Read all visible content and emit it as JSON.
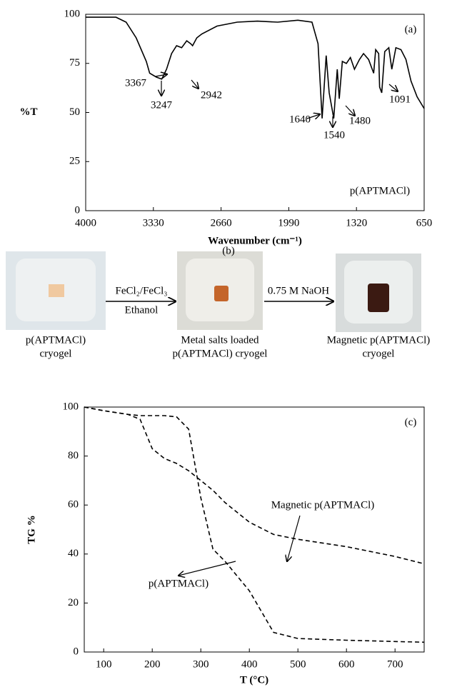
{
  "chart_data": [
    {
      "type": "line",
      "label": "(a)",
      "xlabel": "Wavenumber (cm⁻¹)",
      "ylabel": "%T",
      "xlim": [
        4000,
        650
      ],
      "xticks": [
        4000,
        3330,
        2660,
        1990,
        1320,
        650
      ],
      "ylim": [
        0,
        100
      ],
      "yticks": [
        0,
        25,
        50,
        75,
        100
      ],
      "annotations": [
        "3367",
        "3247",
        "2942",
        "1640",
        "1540",
        "1480",
        "1091"
      ],
      "x": [
        4000,
        3700,
        3600,
        3500,
        3400,
        3367,
        3300,
        3247,
        3200,
        3150,
        3100,
        3050,
        3000,
        2960,
        2942,
        2900,
        2850,
        2700,
        2500,
        2300,
        2100,
        1900,
        1760,
        1700,
        1660,
        1620,
        1590,
        1545,
        1510,
        1490,
        1460,
        1420,
        1380,
        1340,
        1290,
        1250,
        1200,
        1150,
        1130,
        1100,
        1091,
        1070,
        1040,
        1000,
        970,
        930,
        880,
        830,
        780,
        720,
        650
      ],
      "series": [
        {
          "name": "p(APTMACl)",
          "color": "#000000",
          "line_style": "solid",
          "values": [
            98.5,
            98.5,
            96,
            88,
            76,
            70,
            68,
            67,
            72,
            80,
            84,
            83,
            86.5,
            85,
            84,
            88,
            90,
            94,
            96,
            96.5,
            96,
            97,
            96,
            85,
            47,
            79,
            60,
            47,
            72,
            57,
            76,
            75,
            78,
            72,
            77,
            80,
            77,
            70,
            82,
            80,
            63,
            60,
            81,
            83,
            72,
            83,
            82,
            77,
            66,
            58,
            52
          ]
        }
      ]
    },
    {
      "type": "line",
      "label": "(c)",
      "xlabel": "T (°C)",
      "ylabel": "TG %",
      "xlim": [
        60,
        760
      ],
      "xticks": [
        100,
        200,
        300,
        400,
        500,
        600,
        700
      ],
      "ylim": [
        0,
        100
      ],
      "yticks": [
        0,
        20,
        40,
        60,
        80,
        100
      ],
      "x": [
        60,
        100,
        150,
        175,
        200,
        225,
        250,
        275,
        300,
        325,
        350,
        400,
        450,
        500,
        600,
        700,
        760
      ],
      "series": [
        {
          "name": "Magnetic p(APTMACl)",
          "color": "#000000",
          "line_style": "dashed",
          "values": [
            100,
            98.5,
            97,
            95,
            83,
            79,
            77,
            74,
            70,
            66,
            61,
            53,
            48,
            46,
            43,
            39,
            36
          ]
        },
        {
          "name": "p(APTMACl)",
          "color": "#000000",
          "line_style": "dashed",
          "values": [
            100,
            98.5,
            97,
            96.5,
            96.5,
            96.5,
            96,
            91,
            63,
            42,
            37,
            25,
            8,
            5.5,
            4.8,
            4.3,
            4
          ]
        }
      ]
    }
  ],
  "diagram": {
    "label": "(b)",
    "steps": [
      {
        "caption": [
          "p(APTMACl)",
          "cryogel"
        ]
      },
      {
        "caption": [
          "Metal salts loaded",
          "p(APTMACl) cryogel"
        ]
      },
      {
        "caption": [
          "Magnetic p(APTMACl)",
          "cryogel"
        ]
      }
    ],
    "arrows": [
      {
        "labels": [
          "FeCl₂/FeCl₃",
          "Ethanol"
        ]
      },
      {
        "labels": [
          "0.75 M NaOH"
        ]
      }
    ]
  }
}
